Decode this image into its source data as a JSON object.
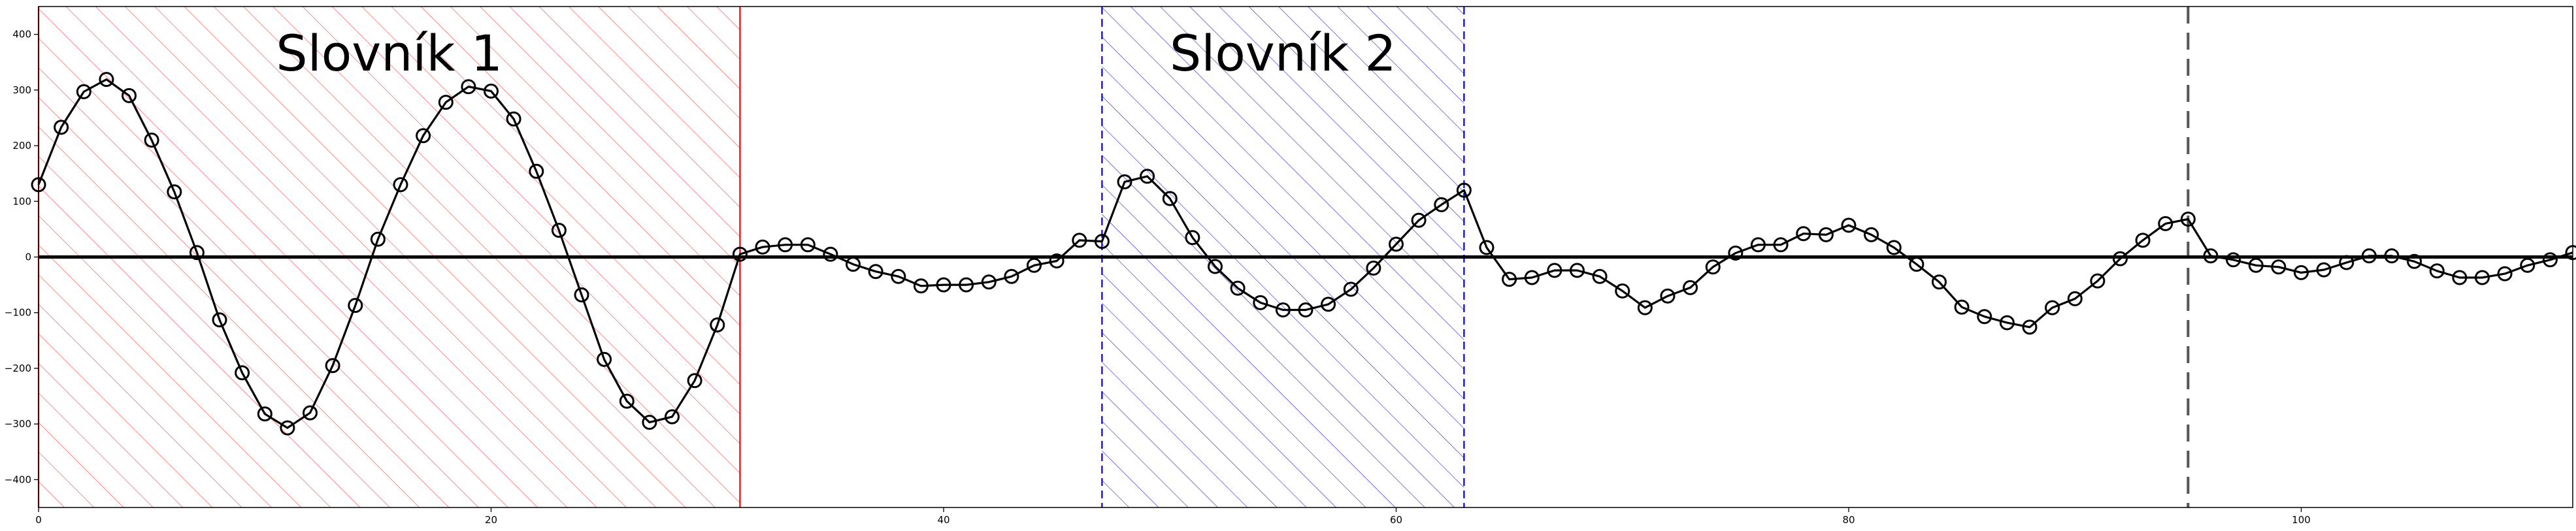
{
  "chart_data": {
    "type": "line",
    "title": "",
    "xlabel": "",
    "ylabel": "",
    "xlim": [
      0,
      112
    ],
    "ylim": [
      -450,
      450
    ],
    "grid": false,
    "xticks": [
      0,
      20,
      40,
      60,
      80,
      100
    ],
    "yticks": [
      -400,
      -300,
      -200,
      -100,
      0,
      100,
      200,
      300,
      400
    ],
    "xtick_labels": [
      "0",
      "20",
      "40",
      "60",
      "80",
      "100"
    ],
    "ytick_labels": [
      "−400",
      "−300",
      "−200",
      "−100",
      "0",
      "100",
      "200",
      "300",
      "400"
    ],
    "zero_line": {
      "y": 0,
      "color": "#000000"
    },
    "regions": [
      {
        "label": "Slovník 1",
        "x_start": 0,
        "x_end": 31,
        "color": "#ff0000",
        "hatch": "diagonal",
        "edge_style": "solid"
      },
      {
        "label": "Slovník 2",
        "x_start": 47,
        "x_end": 63,
        "color": "#0000cc",
        "hatch": "diagonal",
        "edge_style": "dashed"
      }
    ],
    "vertical_markers": [
      {
        "x": 95,
        "color": "#555555",
        "style": "dashed"
      }
    ],
    "series": [
      {
        "color": "#000000",
        "marker": "open-circle",
        "x": [
          0,
          1,
          2,
          3,
          4,
          5,
          6,
          7,
          8,
          9,
          10,
          11,
          12,
          13,
          14,
          15,
          16,
          17,
          18,
          19,
          20,
          21,
          22,
          23,
          24,
          25,
          26,
          27,
          28,
          29,
          30,
          31,
          32,
          33,
          34,
          35,
          36,
          37,
          38,
          39,
          40,
          41,
          42,
          43,
          44,
          45,
          46,
          47,
          48,
          49,
          50,
          51,
          52,
          53,
          54,
          55,
          56,
          57,
          58,
          59,
          60,
          61,
          62,
          63,
          64,
          65,
          66,
          67,
          68,
          69,
          70,
          71,
          72,
          73,
          74,
          75,
          76,
          77,
          78,
          79,
          80,
          81,
          82,
          83,
          84,
          85,
          86,
          87,
          88,
          89,
          90,
          91,
          92,
          93,
          94,
          95,
          96,
          97,
          98,
          99,
          100,
          101,
          102,
          103,
          104,
          105,
          106,
          107,
          108,
          109,
          110,
          111,
          112
        ],
        "y": [
          130,
          233,
          297,
          319,
          290,
          210,
          117,
          8,
          -113,
          -208,
          -282,
          -307,
          -280,
          -195,
          -87,
          32,
          130,
          218,
          278,
          306,
          298,
          248,
          154,
          48,
          -68,
          -184,
          -259,
          -297,
          -287,
          -222,
          -122,
          5,
          18,
          22,
          22,
          5,
          -13,
          -26,
          -35,
          -52,
          -50,
          -50,
          -45,
          -35,
          -15,
          -7,
          30,
          28,
          135,
          145,
          105,
          35,
          -17,
          -56,
          -82,
          -95,
          -95,
          -85,
          -58,
          -20,
          23,
          66,
          94,
          120,
          17,
          -40,
          -37,
          -24,
          -24,
          -35,
          -61,
          -91,
          -70,
          -55,
          -18,
          7,
          22,
          22,
          42,
          40,
          57,
          40,
          17,
          -13,
          -45,
          -90,
          -107,
          -118,
          -126,
          -91,
          -75,
          -43,
          -3,
          30,
          60,
          68,
          2,
          -5,
          -15,
          -18,
          -28,
          -23,
          -10,
          2,
          2,
          -8,
          -25,
          -37,
          -37,
          -30,
          -15,
          -5,
          8
        ]
      }
    ]
  }
}
